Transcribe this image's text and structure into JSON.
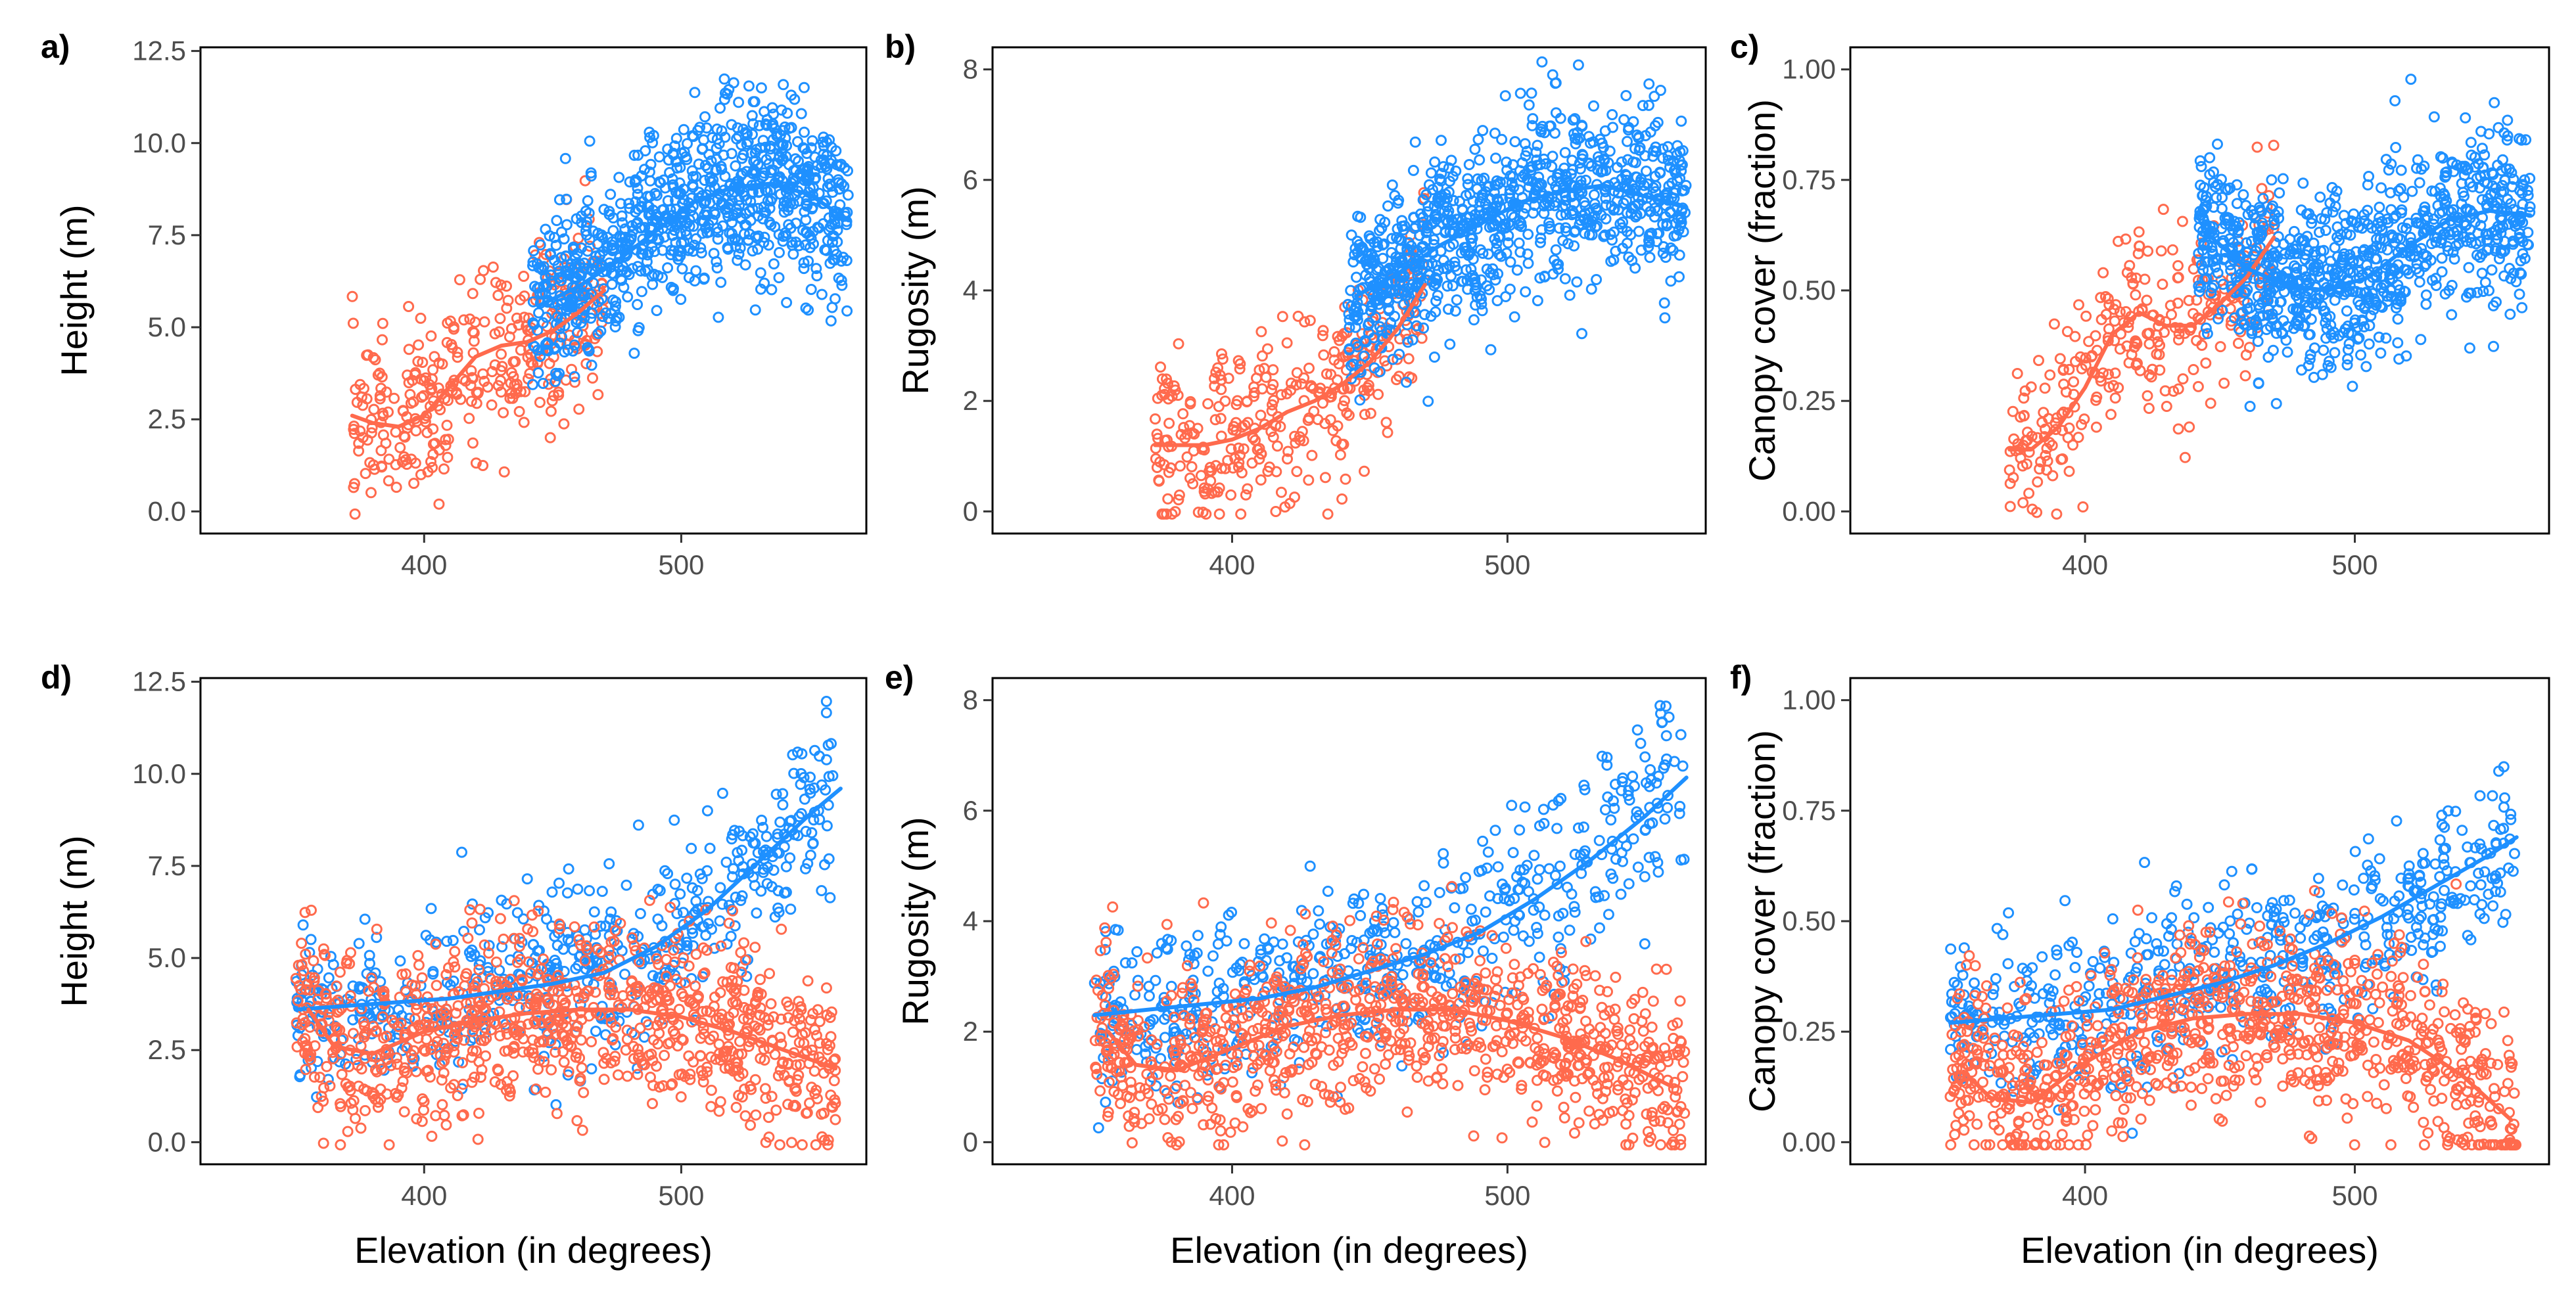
{
  "colors": {
    "series_a": "#1E90FF",
    "series_b": "#FF6A4D"
  },
  "x_axis_title": "Elevation (in degrees)",
  "chart_data": [
    {
      "id": "a",
      "panel_label": "a)",
      "type": "scatter",
      "xlabel": "",
      "ylabel": "Height (m)",
      "xlim": [
        313,
        572
      ],
      "ylim": [
        -0.6,
        12.6
      ],
      "xticks": [
        400,
        500
      ],
      "xtick_labels": [
        "400",
        "500"
      ],
      "yticks": [
        0,
        2.5,
        5,
        7.5,
        10,
        12.5
      ],
      "ytick_labels": [
        "0.0",
        "2.5",
        "5.0",
        "7.5",
        "10.0",
        "12.5"
      ],
      "series": [
        {
          "color": "#FF6A4D",
          "x_range": [
            372,
            470
          ],
          "n_points": 340,
          "smooth": {
            "x": [
              372,
              380,
              390,
              400,
              410,
              420,
              430,
              440,
              450,
              460,
              470
            ],
            "y": [
              2.6,
              2.4,
              2.3,
              2.6,
              3.4,
              4.2,
              4.5,
              4.6,
              4.9,
              5.4,
              6.0
            ]
          }
        },
        {
          "color": "#1E90FF",
          "x_range": [
            442,
            565
          ],
          "n_points": 900,
          "smooth": {
            "x": [
              445,
              460,
              475,
              490,
              505,
              520,
              535,
              550,
              565
            ],
            "y": [
              5.6,
              6.1,
              6.8,
              7.6,
              8.4,
              8.8,
              8.9,
              8.6,
              7.9
            ]
          }
        }
      ]
    },
    {
      "id": "b",
      "panel_label": "b)",
      "type": "scatter",
      "xlabel": "",
      "ylabel": "Rugosity (m)",
      "xlim": [
        313,
        572
      ],
      "ylim": [
        -0.4,
        8.4
      ],
      "xticks": [
        400,
        500
      ],
      "xtick_labels": [
        "400",
        "500"
      ],
      "yticks": [
        0,
        2,
        4,
        6,
        8
      ],
      "ytick_labels": [
        "0",
        "2",
        "4",
        "6",
        "8"
      ],
      "series": [
        {
          "color": "#FF6A4D",
          "x_range": [
            372,
            470
          ],
          "n_points": 340,
          "smooth": {
            "x": [
              372,
              380,
              390,
              400,
              410,
              420,
              430,
              440,
              450,
              460,
              470
            ],
            "y": [
              1.2,
              1.2,
              1.2,
              1.3,
              1.5,
              1.8,
              2.0,
              2.3,
              2.7,
              3.3,
              4.1
            ]
          }
        },
        {
          "color": "#1E90FF",
          "x_range": [
            442,
            565
          ],
          "n_points": 900,
          "smooth": {
            "x": [
              445,
              460,
              475,
              490,
              505,
              520,
              535,
              550,
              565
            ],
            "y": [
              3.9,
              4.3,
              4.8,
              5.2,
              5.6,
              5.8,
              5.9,
              5.7,
              5.5
            ]
          }
        }
      ]
    },
    {
      "id": "c",
      "panel_label": "c)",
      "type": "scatter",
      "xlabel": "",
      "ylabel": "Canopy cover (fraction)",
      "xlim": [
        313,
        572
      ],
      "ylim": [
        -0.05,
        1.05
      ],
      "xticks": [
        400,
        500
      ],
      "xtick_labels": [
        "400",
        "500"
      ],
      "yticks": [
        0,
        0.25,
        0.5,
        0.75,
        1.0
      ],
      "ytick_labels": [
        "0.00",
        "0.25",
        "0.50",
        "0.75",
        "1.00"
      ],
      "series": [
        {
          "color": "#FF6A4D",
          "x_range": [
            372,
            470
          ],
          "n_points": 300,
          "smooth": {
            "x": [
              372,
              380,
              390,
              400,
              410,
              420,
              430,
              440,
              450,
              460,
              470
            ],
            "y": [
              0.14,
              0.14,
              0.19,
              0.28,
              0.4,
              0.45,
              0.42,
              0.42,
              0.47,
              0.53,
              0.62
            ]
          }
        },
        {
          "color": "#1E90FF",
          "x_range": [
            442,
            565
          ],
          "n_points": 900,
          "smooth": {
            "x": [
              445,
              460,
              475,
              490,
              505,
              520,
              535,
              550,
              565
            ],
            "y": [
              0.63,
              0.55,
              0.51,
              0.5,
              0.53,
              0.6,
              0.66,
              0.68,
              0.67
            ]
          }
        }
      ]
    },
    {
      "id": "d",
      "panel_label": "d)",
      "type": "scatter",
      "xlabel": "Elevation (in degrees)",
      "ylabel": "Height (m)",
      "xlim": [
        313,
        572
      ],
      "ylim": [
        -0.6,
        12.6
      ],
      "xticks": [
        400,
        500
      ],
      "xtick_labels": [
        "400",
        "500"
      ],
      "yticks": [
        0,
        2.5,
        5,
        7.5,
        10,
        12.5
      ],
      "ytick_labels": [
        "0.0",
        "2.5",
        "5.0",
        "7.5",
        "10.0",
        "12.5"
      ],
      "series": [
        {
          "color": "#1E90FF",
          "x_range": [
            350,
            560
          ],
          "n_points": 560,
          "smooth": {
            "x": [
              350,
              370,
              390,
              410,
              430,
              450,
              470,
              490,
              510,
              530,
              550,
              562
            ],
            "y": [
              3.6,
              3.7,
              3.8,
              3.9,
              4.1,
              4.3,
              4.6,
              5.3,
              6.3,
              7.6,
              8.9,
              9.6
            ]
          }
        },
        {
          "color": "#FF6A4D",
          "x_range": [
            350,
            560
          ],
          "n_points": 900,
          "smooth": {
            "x": [
              355,
              365,
              380,
              400,
              420,
              440,
              460,
              480,
              500,
              520,
              540,
              560
            ],
            "y": [
              3.6,
              2.6,
              2.4,
              3.0,
              3.3,
              3.5,
              3.6,
              3.6,
              3.4,
              3.0,
              2.5,
              2.0
            ]
          }
        }
      ]
    },
    {
      "id": "e",
      "panel_label": "e)",
      "type": "scatter",
      "xlabel": "Elevation (in degrees)",
      "ylabel": "Rugosity (m)",
      "xlim": [
        313,
        572
      ],
      "ylim": [
        -0.4,
        8.4
      ],
      "xticks": [
        400,
        500
      ],
      "xtick_labels": [
        "400",
        "500"
      ],
      "yticks": [
        0,
        2,
        4,
        6,
        8
      ],
      "ytick_labels": [
        "0",
        "2",
        "4",
        "6",
        "8"
      ],
      "series": [
        {
          "color": "#1E90FF",
          "x_range": [
            350,
            565
          ],
          "n_points": 560,
          "smooth": {
            "x": [
              350,
              370,
              390,
              410,
              430,
              450,
              470,
              490,
              510,
              530,
              550,
              565
            ],
            "y": [
              2.3,
              2.4,
              2.5,
              2.6,
              2.8,
              3.1,
              3.4,
              3.8,
              4.4,
              5.1,
              5.9,
              6.6
            ]
          }
        },
        {
          "color": "#FF6A4D",
          "x_range": [
            350,
            565
          ],
          "n_points": 900,
          "smooth": {
            "x": [
              355,
              365,
              380,
              400,
              420,
              440,
              460,
              480,
              500,
              520,
              540,
              560
            ],
            "y": [
              2.0,
              1.4,
              1.3,
              1.7,
              2.1,
              2.3,
              2.4,
              2.4,
              2.2,
              1.9,
              1.5,
              1.0
            ]
          }
        }
      ]
    },
    {
      "id": "f",
      "panel_label": "f)",
      "type": "scatter",
      "xlabel": "Elevation (in degrees)",
      "ylabel": "Canopy cover (fraction)",
      "xlim": [
        313,
        572
      ],
      "ylim": [
        -0.05,
        1.05
      ],
      "xticks": [
        400,
        500
      ],
      "xtick_labels": [
        "400",
        "500"
      ],
      "yticks": [
        0,
        0.25,
        0.5,
        0.75,
        1.0
      ],
      "ytick_labels": [
        "0.00",
        "0.25",
        "0.50",
        "0.75",
        "1.00"
      ],
      "series": [
        {
          "color": "#1E90FF",
          "x_range": [
            350,
            560
          ],
          "n_points": 560,
          "smooth": {
            "x": [
              350,
              370,
              390,
              410,
              430,
              450,
              470,
              490,
              510,
              530,
              550,
              560
            ],
            "y": [
              0.27,
              0.28,
              0.29,
              0.3,
              0.33,
              0.36,
              0.4,
              0.45,
              0.51,
              0.58,
              0.65,
              0.69
            ]
          }
        },
        {
          "color": "#FF6A4D",
          "x_range": [
            350,
            560
          ],
          "n_points": 900,
          "smooth": {
            "x": [
              355,
              365,
              380,
              400,
              420,
              440,
              460,
              480,
              500,
              520,
              540,
              558
            ],
            "y": [
              0.16,
              0.1,
              0.09,
              0.18,
              0.25,
              0.28,
              0.29,
              0.29,
              0.27,
              0.23,
              0.15,
              0.05
            ]
          }
        }
      ]
    }
  ]
}
